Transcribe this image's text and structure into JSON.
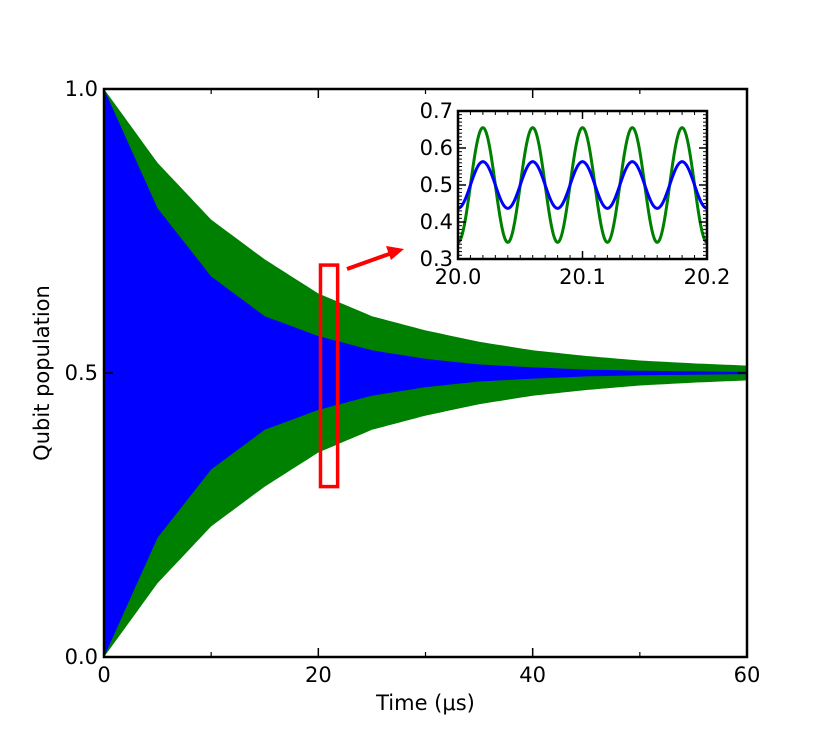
{
  "chart_data": [
    {
      "type": "area",
      "xlabel": "Time (μs)",
      "ylabel": "Qubit population",
      "xlim": [
        0,
        60
      ],
      "ylim": [
        0.0,
        1.0
      ],
      "x_ticks": [
        "0",
        "20",
        "40",
        "60"
      ],
      "y_ticks": [
        "0.0",
        "0.5",
        "1.0"
      ],
      "grid": false,
      "legend": "none",
      "series": [
        {
          "color": "#008000",
          "envelope_x": [
            0,
            5,
            10,
            15,
            20,
            25,
            30,
            35,
            40,
            45,
            50,
            55,
            60
          ],
          "upper": [
            1.0,
            0.87,
            0.77,
            0.7,
            0.64,
            0.6,
            0.575,
            0.555,
            0.54,
            0.53,
            0.522,
            0.517,
            0.513
          ],
          "lower": [
            0.0,
            0.13,
            0.23,
            0.3,
            0.36,
            0.4,
            0.425,
            0.445,
            0.46,
            0.47,
            0.478,
            0.483,
            0.487
          ]
        },
        {
          "color": "#0000ff",
          "envelope_x": [
            0,
            5,
            10,
            15,
            20,
            25,
            30,
            35,
            40,
            45,
            50,
            55,
            60
          ],
          "upper": [
            1.0,
            0.79,
            0.67,
            0.6,
            0.565,
            0.54,
            0.525,
            0.515,
            0.51,
            0.506,
            0.504,
            0.503,
            0.502
          ],
          "lower": [
            0.0,
            0.21,
            0.33,
            0.4,
            0.435,
            0.46,
            0.475,
            0.485,
            0.49,
            0.494,
            0.496,
            0.497,
            0.498
          ]
        }
      ],
      "highlight_box": {
        "x_range": [
          20.2,
          21.8
        ],
        "y_range": [
          0.3,
          0.69
        ],
        "color": "#ff0000"
      }
    },
    {
      "type": "line",
      "xlim": [
        20.0,
        20.2
      ],
      "ylim": [
        0.3,
        0.7
      ],
      "x_ticks": [
        "20.0",
        "20.1",
        "20.2"
      ],
      "y_ticks": [
        "0.3",
        "0.4",
        "0.5",
        "0.6",
        "0.7"
      ],
      "grid": false,
      "legend": "none",
      "series": [
        {
          "color": "#008000",
          "center": 0.5,
          "amplitude": 0.155,
          "period": 0.04,
          "peak_x": 20.02
        },
        {
          "color": "#0000ff",
          "center": 0.5,
          "amplitude": 0.063,
          "period": 0.04,
          "peak_x": 20.02
        }
      ]
    }
  ]
}
